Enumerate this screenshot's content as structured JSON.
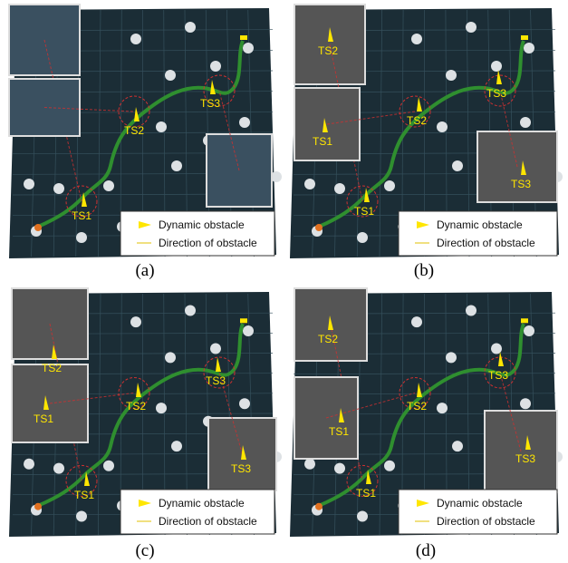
{
  "panels": [
    {
      "label": "(a)",
      "annotations": [
        "TS1",
        "TS2",
        "TS3"
      ],
      "legend": [
        "Dynamic obstacle",
        "Direction of obstacle"
      ]
    },
    {
      "label": "(b)",
      "annotations": [
        "TS2",
        "TS1",
        "TS2",
        "TS3",
        "TS3",
        "TS1"
      ],
      "legend": [
        "Dynamic obstacle",
        "Direction of obstacle"
      ]
    },
    {
      "label": "(c)",
      "annotations": [
        "TS2",
        "TS1",
        "TS2",
        "TS3",
        "TS3",
        "TS1"
      ],
      "legend": [
        "Dynamic obstacle",
        "Direction of obstacle"
      ]
    },
    {
      "label": "(d)",
      "annotations": [
        "TS2",
        "TS1",
        "TS2",
        "TS3",
        "TS3",
        "TS1"
      ],
      "legend": [
        "Dynamic obstacle",
        "Direction of obstacle"
      ]
    }
  ]
}
